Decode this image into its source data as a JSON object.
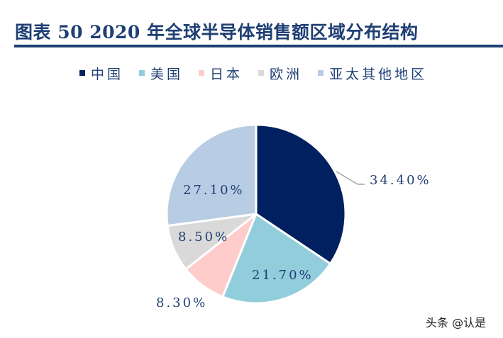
{
  "header": {
    "title": "图表 50 2020 年全球半导体销售额区域分布结构"
  },
  "legend": [
    {
      "label": "中国",
      "color": "#002060"
    },
    {
      "label": "美国",
      "color": "#92cddc"
    },
    {
      "label": "日本",
      "color": "#ffcccc"
    },
    {
      "label": "欧洲",
      "color": "#d9d9d9"
    },
    {
      "label": "亚太其他地区",
      "color": "#b8cce4"
    }
  ],
  "chart_data": {
    "type": "pie",
    "title": "2020年全球半导体销售额区域分布结构",
    "categories": [
      "中国",
      "美国",
      "日本",
      "欧洲",
      "亚太其他地区"
    ],
    "values": [
      34.4,
      21.7,
      8.3,
      8.5,
      27.1
    ],
    "labels": [
      "34.40%",
      "21.70%",
      "8.30%",
      "8.50%",
      "27.10%"
    ],
    "colors": [
      "#002060",
      "#92cddc",
      "#ffcccc",
      "#d9d9d9",
      "#b8cce4"
    ],
    "start_angle": "12 o'clock",
    "direction": "clockwise",
    "legend_position": "top"
  },
  "watermark": "头条 @认是"
}
